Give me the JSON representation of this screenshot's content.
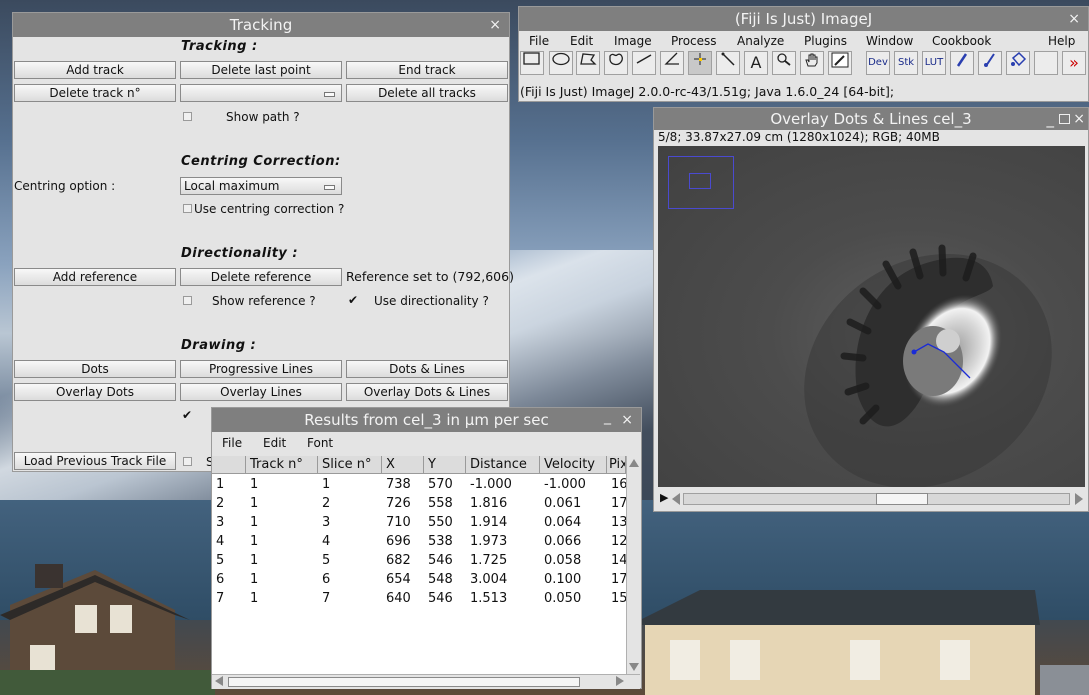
{
  "tracking_window": {
    "title": "Tracking",
    "close": "×",
    "sections": {
      "tracking": "Tracking :",
      "centring": "Centring Correction:",
      "directionality": "Directionality :",
      "drawing": "Drawing :"
    },
    "buttons": {
      "add_track": "Add track",
      "delete_last_point": "Delete last point",
      "end_track": "End track",
      "delete_track_n": "Delete track n°",
      "delete_all_tracks": "Delete all tracks",
      "add_reference": "Add reference",
      "delete_reference": "Delete reference",
      "dots": "Dots",
      "progressive_lines": "Progressive Lines",
      "dots_and_lines": "Dots & Lines",
      "overlay_dots": "Overlay Dots",
      "overlay_lines": "Overlay Lines",
      "overlay_dots_and_lines": "Overlay Dots & Lines",
      "load_previous_track_file": "Load Previous Track File"
    },
    "track_select": "",
    "show_path": "Show path ?",
    "centring_option_label": "Centring option :",
    "centring_option_value": "Local maximum",
    "use_centring": "Use centring correction ?",
    "reference_set": "Reference set to (792,606)",
    "show_reference": "Show reference ?",
    "use_directionality": "Use directionality ?",
    "partial_label": "S",
    "checked_mark": "✔"
  },
  "imagej_window": {
    "title": "(Fiji Is Just) ImageJ",
    "close": "×",
    "menu": [
      "File",
      "Edit",
      "Image",
      "Process",
      "Analyze",
      "Plugins",
      "Window",
      "Cookbook",
      "Help"
    ],
    "status": "(Fiji Is Just) ImageJ 2.0.0-rc-43/1.51g; Java 1.6.0_24 [64-bit];",
    "tools": {
      "text_tool": "A",
      "dev": "Dev",
      "stk": "Stk",
      "lut": "LUT",
      "more": "»"
    }
  },
  "image_window": {
    "title": "Overlay Dots & Lines cel_3",
    "info": "5/8; 33.87x27.09 cm (1280x1024); RGB; 40MB",
    "play": "▶",
    "close": "×"
  },
  "results_window": {
    "title": "Results from cel_3 in µm per sec",
    "menu": [
      "File",
      "Edit",
      "Font"
    ],
    "close": "×",
    "minimize": "_",
    "columns": [
      "",
      "Track n°",
      "Slice n°",
      "X",
      "Y",
      "Distance",
      "Velocity",
      "Pix"
    ],
    "rows": [
      [
        "1",
        "1",
        "1",
        "738",
        "570",
        "-1.000",
        "-1.000",
        "16"
      ],
      [
        "2",
        "1",
        "2",
        "726",
        "558",
        "1.816",
        "0.061",
        "17"
      ],
      [
        "3",
        "1",
        "3",
        "710",
        "550",
        "1.914",
        "0.064",
        "13"
      ],
      [
        "4",
        "1",
        "4",
        "696",
        "538",
        "1.973",
        "0.066",
        "12"
      ],
      [
        "5",
        "1",
        "5",
        "682",
        "546",
        "1.725",
        "0.058",
        "14"
      ],
      [
        "6",
        "1",
        "6",
        "654",
        "548",
        "3.004",
        "0.100",
        "17"
      ],
      [
        "7",
        "1",
        "7",
        "640",
        "546",
        "1.513",
        "0.050",
        "15"
      ]
    ]
  }
}
